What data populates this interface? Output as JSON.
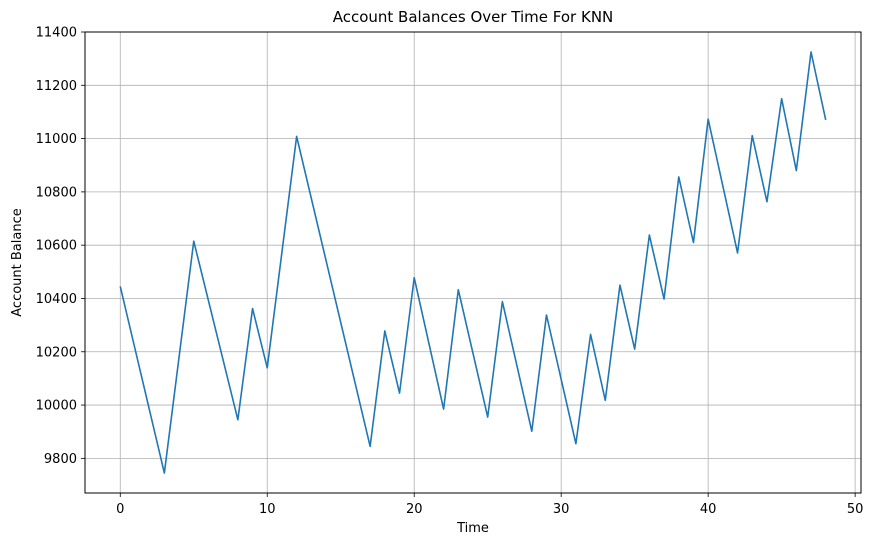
{
  "chart_data": {
    "type": "line",
    "title": "Account Balances Over Time For KNN",
    "xlabel": "Time",
    "ylabel": "Account Balance",
    "xlim": [
      -2.4,
      50.4
    ],
    "ylim": [
      9670,
      11400
    ],
    "xticks": [
      0,
      10,
      20,
      30,
      40,
      50
    ],
    "yticks": [
      9800,
      10000,
      10200,
      10400,
      10600,
      10800,
      11000,
      11200,
      11400
    ],
    "grid": true,
    "line_color": "#1f77b4",
    "series": [
      {
        "x": [
          0,
          3,
          5,
          8,
          9,
          10,
          12,
          17,
          18,
          19,
          20,
          22,
          23,
          25,
          26,
          28,
          29,
          31,
          32,
          33,
          34,
          35,
          36,
          37,
          38,
          39,
          40,
          42,
          43,
          44,
          45,
          46,
          47,
          48
        ],
        "y": [
          10445,
          9745,
          10615,
          9945,
          10362,
          10140,
          11008,
          9845,
          10278,
          10045,
          10478,
          9985,
          10433,
          9955,
          10388,
          9902,
          10338,
          9855,
          10265,
          10018,
          10450,
          10210,
          10638,
          10398,
          10856,
          10610,
          11073,
          10571,
          11011,
          10763,
          11150,
          10880,
          11325,
          11070
        ]
      }
    ]
  }
}
